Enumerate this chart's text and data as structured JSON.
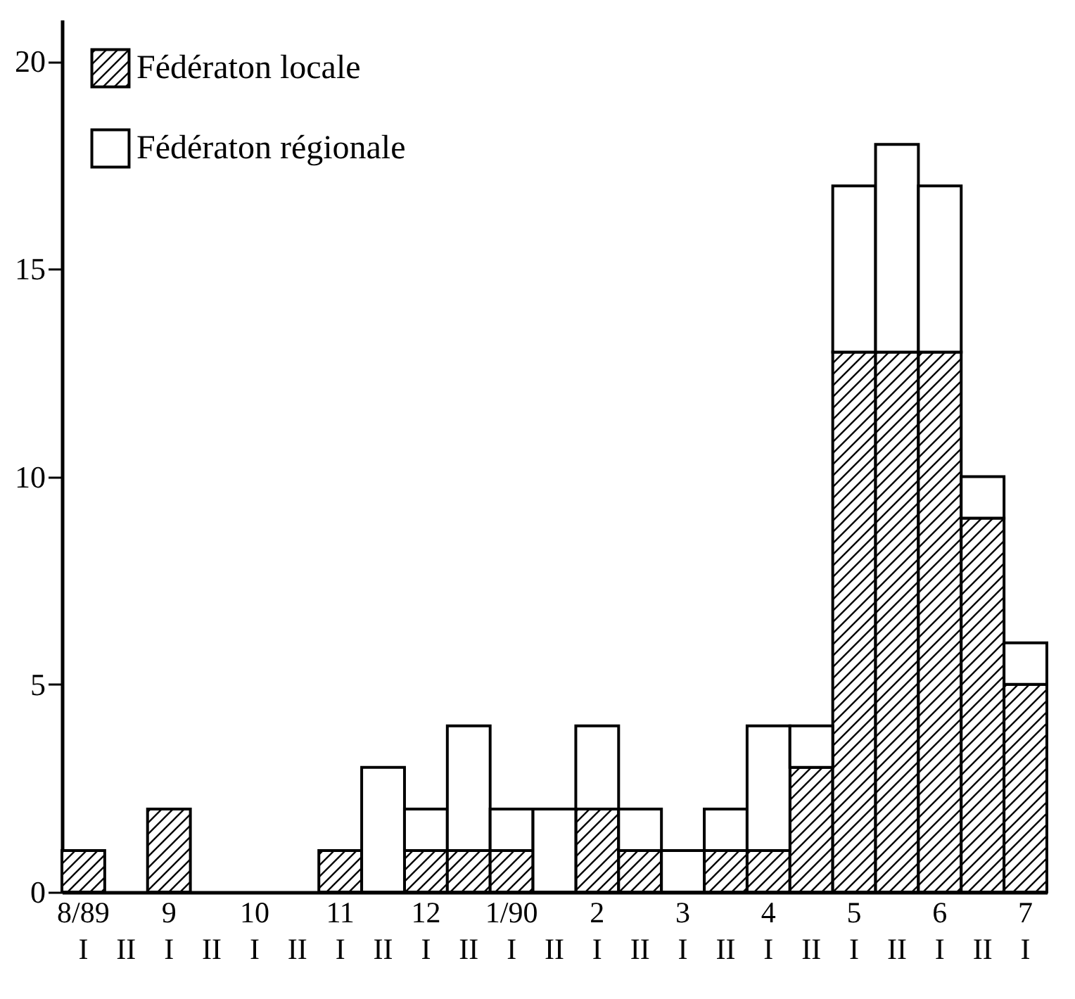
{
  "chart_data": {
    "type": "bar",
    "stacked": true,
    "categories": [
      "8/89 I",
      "II",
      "9 I",
      "II",
      "10 I",
      "II",
      "11 I",
      "II",
      "12 I",
      "II",
      "1/90 I",
      "II",
      "2 I",
      "II",
      "3 I",
      "II",
      "4 I",
      "II",
      "5 I",
      "II",
      "6 I",
      "II",
      "7 I"
    ],
    "series": [
      {
        "name": "Fédératon locale",
        "color": "#000000",
        "values": [
          1,
          0,
          2,
          0,
          0,
          0,
          1,
          0,
          1,
          1,
          1,
          0,
          2,
          1,
          0,
          1,
          1,
          3,
          13,
          13,
          13,
          9,
          5
        ]
      },
      {
        "name": "Fédératon régionale",
        "color": "#ffffff",
        "values": [
          0,
          0,
          0,
          0,
          0,
          0,
          0,
          3,
          1,
          3,
          1,
          2,
          2,
          1,
          1,
          1,
          3,
          1,
          4,
          5,
          4,
          1,
          1
        ]
      }
    ],
    "ylim": [
      0,
      21
    ],
    "yticks": [
      0,
      5,
      10,
      15,
      20
    ],
    "grid": false,
    "legend": "top left"
  }
}
